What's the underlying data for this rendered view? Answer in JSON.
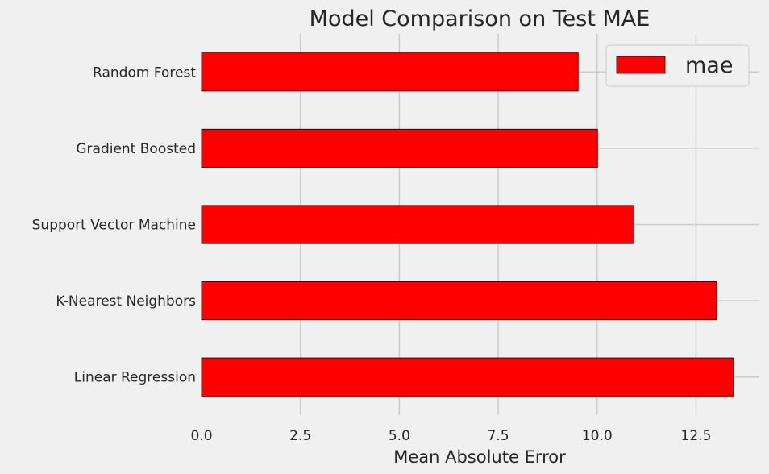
{
  "chart_data": {
    "type": "bar",
    "orientation": "horizontal",
    "title": "Model Comparison on Test MAE",
    "xlabel": "Mean Absolute Error",
    "ylabel": "",
    "categories": [
      "Random Forest",
      "Gradient Boosted",
      "Support Vector Machine",
      "K-Nearest Neighbors",
      "Linear Regression"
    ],
    "series": [
      {
        "name": "mae",
        "values": [
          9.52,
          10.01,
          10.93,
          13.02,
          13.45
        ],
        "color": "#ff0000"
      }
    ],
    "xlim": [
      0,
      14.1
    ],
    "xticks": [
      "0.0",
      "2.5",
      "5.0",
      "7.5",
      "10.0",
      "12.5"
    ],
    "grid": true,
    "legend_position": "top-right"
  }
}
